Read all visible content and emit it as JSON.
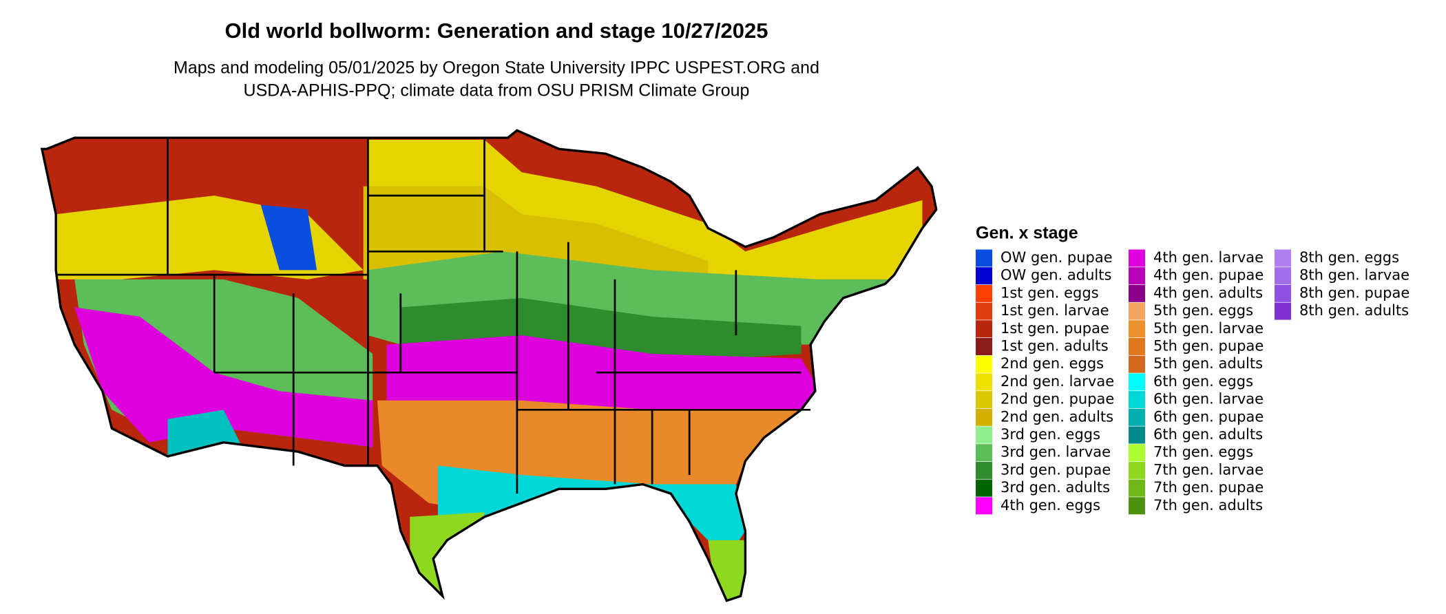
{
  "header": {
    "title": "Old world bollworm: Generation and stage 10/27/2025",
    "subtitle": [
      "Maps and modeling 05/01/2025 by Oregon State University IPPC USPEST.ORG and",
      "USDA-APHIS-PPQ; climate data from OSU PRISM Climate Group"
    ]
  },
  "legend": {
    "title": "Gen. x stage",
    "items": [
      {
        "label": "OW gen. pupae",
        "color": "#0a4ee0"
      },
      {
        "label": "OW gen. adults",
        "color": "#0000d0"
      },
      {
        "label": "1st gen. eggs",
        "color": "#ff4000"
      },
      {
        "label": "1st gen. larvae",
        "color": "#e03c10"
      },
      {
        "label": "1st gen. pupae",
        "color": "#b8260e"
      },
      {
        "label": "1st gen. adults",
        "color": "#8b1a1a"
      },
      {
        "label": "2nd gen. eggs",
        "color": "#ffff00"
      },
      {
        "label": "2nd gen. larvae",
        "color": "#eee000"
      },
      {
        "label": "2nd gen. pupae",
        "color": "#dcc800"
      },
      {
        "label": "2nd gen. adults",
        "color": "#d2b000"
      },
      {
        "label": "3rd gen. eggs",
        "color": "#90ee90"
      },
      {
        "label": "3rd gen. larvae",
        "color": "#5cbd5a"
      },
      {
        "label": "3rd gen. pupae",
        "color": "#2e8b2e"
      },
      {
        "label": "3rd gen. adults",
        "color": "#006400"
      },
      {
        "label": "4th gen. eggs",
        "color": "#ff00ff"
      },
      {
        "label": "4th gen. larvae",
        "color": "#dd00dd"
      },
      {
        "label": "4th gen. pupae",
        "color": "#b800b8"
      },
      {
        "label": "4th gen. adults",
        "color": "#8b008b"
      },
      {
        "label": "5th gen. eggs",
        "color": "#f4a460"
      },
      {
        "label": "5th gen. larvae",
        "color": "#ed9030"
      },
      {
        "label": "5th gen. pupae",
        "color": "#e07820"
      },
      {
        "label": "5th gen. adults",
        "color": "#d2691e"
      },
      {
        "label": "6th gen. eggs",
        "color": "#00ffff"
      },
      {
        "label": "6th gen. larvae",
        "color": "#00d8d8"
      },
      {
        "label": "6th gen. pupae",
        "color": "#00b0b0"
      },
      {
        "label": "6th gen. adults",
        "color": "#008b8b"
      },
      {
        "label": "7th gen. eggs",
        "color": "#adff2f"
      },
      {
        "label": "7th gen. larvae",
        "color": "#8ed820"
      },
      {
        "label": "7th gen. pupae",
        "color": "#6eb818"
      },
      {
        "label": "7th gen. adults",
        "color": "#4e9010"
      },
      {
        "label": "8th gen. eggs",
        "color": "#b080f0"
      },
      {
        "label": "8th gen. larvae",
        "color": "#a070ea"
      },
      {
        "label": "8th gen. pupae",
        "color": "#9050e0"
      },
      {
        "label": "8th gen. adults",
        "color": "#8030d0"
      }
    ]
  }
}
